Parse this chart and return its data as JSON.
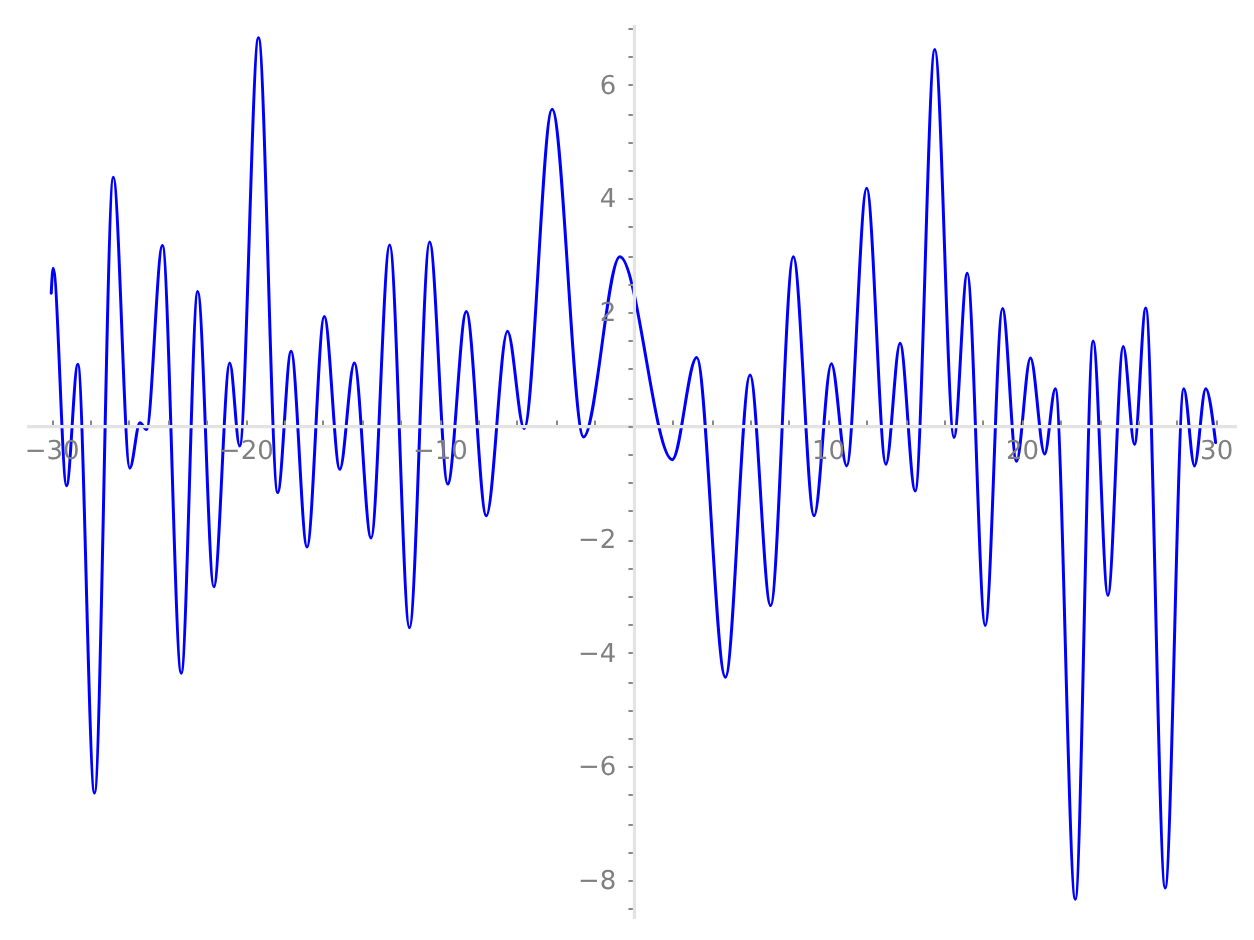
{
  "chart_data": {
    "type": "line",
    "x": [
      -30,
      -29.9,
      -29.21,
      -28.63,
      -27.77,
      -26.8,
      -25.95,
      -25.43,
      -25.09,
      -24.27,
      -23.3,
      -22.45,
      -21.62,
      -20.8,
      -20.29,
      -19.32,
      -18.33,
      -17.64,
      -16.82,
      -15.93,
      -15.13,
      -14.38,
      -13.52,
      -12.56,
      -11.54,
      -10.5,
      -9.57,
      -8.61,
      -7.58,
      -6.49,
      -5.63,
      -4.19,
      -2.57,
      -0.7,
      2.0,
      3.26,
      4.74,
      6.01,
      7.07,
      8.24,
      9.31,
      10.2,
      10.99,
      12.02,
      13.01,
      13.74,
      14.52,
      15.53,
      16.52,
      17.2,
      18.13,
      19.02,
      19.74,
      20.46,
      21.19,
      21.74,
      22.77,
      23.69,
      24.45,
      25.24,
      25.82,
      26.4,
      27.4,
      28.36,
      28.91,
      29.49,
      30
    ],
    "series": [
      {
        "color": "#0000ff",
        "values": [
          2.33,
          2.77,
          -1.06,
          1.08,
          -6.47,
          4.37,
          -0.75,
          0.05,
          -0.07,
          3.17,
          -4.36,
          2.36,
          -2.84,
          1.1,
          -0.36,
          6.83,
          -1.18,
          1.31,
          -2.14,
          1.92,
          -0.77,
          1.1,
          -1.98,
          3.18,
          -3.56,
          3.23,
          -1.03,
          2.01,
          -1.59,
          1.66,
          -0.05,
          5.57,
          -0.2,
          2.97,
          -0.6,
          1.2,
          -4.43,
          0.89,
          -3.17,
          2.97,
          -1.59,
          1.09,
          -0.71,
          4.18,
          -0.68,
          1.45,
          -1.15,
          6.62,
          -0.21,
          2.68,
          -3.52,
          2.06,
          -0.63,
          1.19,
          -0.5,
          0.65,
          -8.34,
          1.49,
          -2.99,
          1.39,
          -0.33,
          2.07,
          -8.14,
          0.65,
          -0.71,
          0.65,
          -0.3
        ]
      }
    ],
    "xlim": [
      -31.3,
      31.05
    ],
    "xticks": [
      -30,
      {
        "value": -28,
        "label": null
      },
      {
        "value": -26,
        "label": null
      },
      {
        "value": -24,
        "label": null
      },
      {
        "value": -22,
        "label": null
      },
      -20,
      {
        "value": -18,
        "label": null
      },
      {
        "value": -16,
        "label": null
      },
      {
        "value": -14,
        "label": null
      },
      {
        "value": -12,
        "label": null
      },
      -10,
      {
        "value": -8,
        "label": null
      },
      {
        "value": -6,
        "label": null
      },
      {
        "value": -4,
        "label": null
      },
      {
        "value": -2,
        "label": null
      },
      {
        "value": 0,
        "label": null
      },
      {
        "value": 2,
        "label": null
      },
      {
        "value": 4,
        "label": null
      },
      {
        "value": 6,
        "label": null
      },
      {
        "value": 8,
        "label": null
      },
      10,
      {
        "value": 12,
        "label": null
      },
      {
        "value": 14,
        "label": null
      },
      {
        "value": 16,
        "label": null
      },
      {
        "value": 18,
        "label": null
      },
      20,
      {
        "value": 22,
        "label": null
      },
      {
        "value": 24,
        "label": null
      },
      {
        "value": 26,
        "label": null
      },
      {
        "value": 28,
        "label": null
      },
      30
    ],
    "ylim": [
      -8.67,
      7.07
    ],
    "yticks": [
      {
        "value": -8.5,
        "label": null
      },
      -8,
      {
        "value": -7.5,
        "label": null
      },
      {
        "value": -7,
        "label": null
      },
      {
        "value": -6.5,
        "label": null
      },
      -6,
      {
        "value": -5.5,
        "label": null
      },
      {
        "value": -5,
        "label": null
      },
      {
        "value": -4.5,
        "label": null
      },
      -4,
      {
        "value": -3.5,
        "label": null
      },
      {
        "value": -3,
        "label": null
      },
      {
        "value": -2.5,
        "label": null
      },
      -2,
      {
        "value": -1.5,
        "label": null
      },
      {
        "value": -1,
        "label": null
      },
      {
        "value": -0.5,
        "label": null
      },
      {
        "value": 0,
        "label": null
      },
      {
        "value": 0.5,
        "label": null
      },
      {
        "value": 1,
        "label": null
      },
      {
        "value": 1.5,
        "label": null
      },
      2,
      {
        "value": 2.5,
        "label": null
      },
      {
        "value": 3,
        "label": null
      },
      {
        "value": 3.5,
        "label": null
      },
      4,
      {
        "value": 4.5,
        "label": null
      },
      {
        "value": 5,
        "label": null
      },
      {
        "value": 5.5,
        "label": null
      },
      6,
      {
        "value": 6.5,
        "label": null
      },
      {
        "value": 7,
        "label": null
      }
    ]
  }
}
